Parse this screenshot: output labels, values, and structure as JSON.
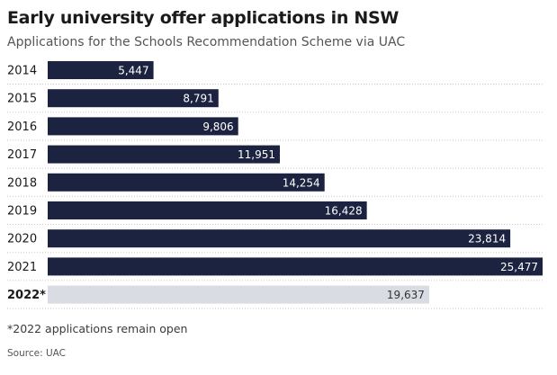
{
  "title": "Early university offer applications in NSW",
  "subtitle": "Applications for the Schools Recommendation Scheme via UAC",
  "footnote": "*2022 applications remain open",
  "source": "Source: UAC",
  "colors": {
    "bar": "#1c2340",
    "bar_highlight": "#d9dce3",
    "label_on_bar": "#ffffff",
    "label_on_light": "#333333",
    "grid": "#c8c8c8"
  },
  "chart_data": {
    "type": "bar",
    "orientation": "horizontal",
    "categories": [
      "2014",
      "2015",
      "2016",
      "2017",
      "2018",
      "2019",
      "2020",
      "2021",
      "2022*"
    ],
    "values": [
      5447,
      8791,
      9806,
      11951,
      14254,
      16428,
      23814,
      25477,
      19637
    ],
    "value_labels": [
      "5,447",
      "8,791",
      "9,806",
      "11,951",
      "14,254",
      "16,428",
      "23,814",
      "25,477",
      "19,637"
    ],
    "highlight_index": 8,
    "title": "Early university offer applications in NSW",
    "subtitle": "Applications for the Schools Recommendation Scheme via UAC",
    "xlim": [
      0,
      25477
    ],
    "grid": "dotted row separators",
    "legend": "none"
  }
}
